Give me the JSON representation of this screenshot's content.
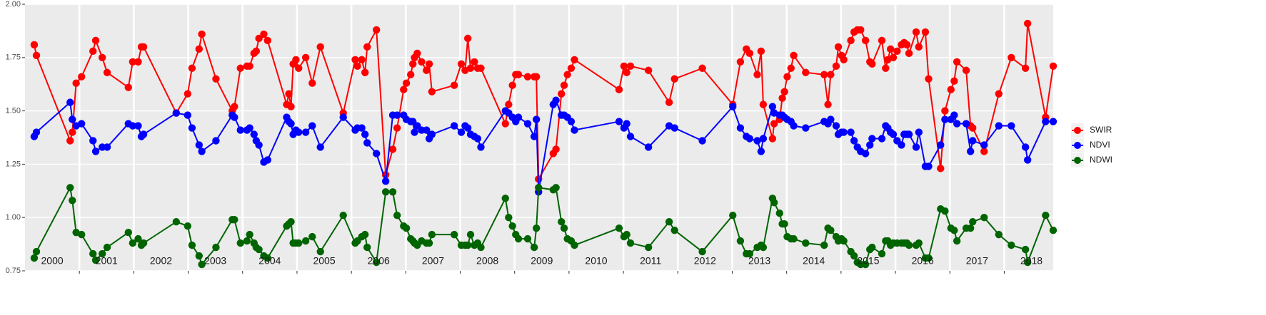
{
  "chart_data": {
    "type": "line",
    "x": [
      2000.17,
      2000.21,
      2000.83,
      2000.87,
      2000.94,
      2001.04,
      2001.25,
      2001.3,
      2001.42,
      2001.51,
      2001.9,
      2001.98,
      2002.08,
      2002.14,
      2002.18,
      2002.78,
      2002.99,
      2003.07,
      2003.2,
      2003.25,
      2003.51,
      2003.81,
      2003.85,
      2003.96,
      2004.08,
      2004.13,
      2004.21,
      2004.25,
      2004.3,
      2004.39,
      2004.46,
      2004.81,
      2004.85,
      2004.89,
      2004.93,
      2004.98,
      2005.03,
      2005.16,
      2005.28,
      2005.43,
      2005.85,
      2006.07,
      2006.11,
      2006.19,
      2006.25,
      2006.29,
      2006.46,
      2006.63,
      2006.76,
      2006.84,
      2006.96,
      2007.01,
      2007.09,
      2007.13,
      2007.16,
      2007.21,
      2007.29,
      2007.38,
      2007.43,
      2007.48,
      2007.89,
      2008.02,
      2008.09,
      2008.14,
      2008.19,
      2008.26,
      2008.32,
      2008.38,
      2008.83,
      2008.89,
      2008.96,
      2009.02,
      2009.07,
      2009.24,
      2009.36,
      2009.4,
      2009.44,
      2009.71,
      2009.76,
      2009.86,
      2009.91,
      2009.97,
      2010.04,
      2010.1,
      2010.92,
      2011.01,
      2011.06,
      2011.13,
      2011.46,
      2011.84,
      2011.94,
      2012.45,
      2013.01,
      2013.15,
      2013.26,
      2013.32,
      2013.46,
      2013.53,
      2013.57,
      2013.74,
      2013.77,
      2013.87,
      2013.92,
      2013.96,
      2014.01,
      2014.08,
      2014.13,
      2014.35,
      2014.69,
      2014.76,
      2014.81,
      2014.91,
      2014.95,
      2015.01,
      2015.05,
      2015.18,
      2015.24,
      2015.3,
      2015.36,
      2015.45,
      2015.53,
      2015.57,
      2015.75,
      2015.82,
      2015.86,
      2015.91,
      2015.96,
      2016.03,
      2016.11,
      2016.16,
      2016.21,
      2016.25,
      2016.38,
      2016.43,
      2016.55,
      2016.61,
      2016.83,
      2016.91,
      2017.02,
      2017.08,
      2017.13,
      2017.3,
      2017.38,
      2017.42,
      2017.63,
      2017.9,
      2018.13,
      2018.39,
      2018.43,
      2018.76,
      2018.9
    ],
    "series": [
      {
        "name": "SWIR",
        "color": "#ff0000",
        "values": [
          1.81,
          1.76,
          1.36,
          1.4,
          1.63,
          1.66,
          1.78,
          1.83,
          1.75,
          1.68,
          1.61,
          1.73,
          1.73,
          1.8,
          1.8,
          1.49,
          1.58,
          1.7,
          1.79,
          1.86,
          1.65,
          1.5,
          1.52,
          1.7,
          1.71,
          1.71,
          1.77,
          1.78,
          1.84,
          1.86,
          1.83,
          1.53,
          1.58,
          1.52,
          1.72,
          1.74,
          1.7,
          1.75,
          1.63,
          1.8,
          1.49,
          1.74,
          1.71,
          1.74,
          1.68,
          1.8,
          1.88,
          1.2,
          1.32,
          1.42,
          1.6,
          1.63,
          1.67,
          1.72,
          1.75,
          1.77,
          1.73,
          1.69,
          1.72,
          1.59,
          1.62,
          1.72,
          1.69,
          1.84,
          1.7,
          1.73,
          1.7,
          1.7,
          1.44,
          1.53,
          1.62,
          1.67,
          1.67,
          1.66,
          1.66,
          1.66,
          1.18,
          1.3,
          1.32,
          1.58,
          1.62,
          1.67,
          1.7,
          1.74,
          1.6,
          1.71,
          1.68,
          1.71,
          1.69,
          1.54,
          1.65,
          1.7,
          1.53,
          1.73,
          1.79,
          1.77,
          1.67,
          1.78,
          1.53,
          1.37,
          1.44,
          1.46,
          1.56,
          1.59,
          1.66,
          1.7,
          1.76,
          1.68,
          1.67,
          1.53,
          1.67,
          1.71,
          1.8,
          1.76,
          1.74,
          1.83,
          1.87,
          1.88,
          1.88,
          1.83,
          1.73,
          1.72,
          1.83,
          1.7,
          1.74,
          1.79,
          1.75,
          1.78,
          1.81,
          1.82,
          1.81,
          1.77,
          1.87,
          1.8,
          1.87,
          1.65,
          1.23,
          1.5,
          1.6,
          1.64,
          1.73,
          1.69,
          1.43,
          1.42,
          1.31,
          1.58,
          1.75,
          1.7,
          1.91,
          1.47,
          1.71
        ]
      },
      {
        "name": "NDVI",
        "color": "#0000ff",
        "values": [
          1.38,
          1.4,
          1.54,
          1.46,
          1.43,
          1.44,
          1.36,
          1.31,
          1.33,
          1.33,
          1.44,
          1.43,
          1.43,
          1.38,
          1.39,
          1.49,
          1.48,
          1.42,
          1.34,
          1.31,
          1.36,
          1.48,
          1.47,
          1.41,
          1.41,
          1.42,
          1.39,
          1.36,
          1.34,
          1.26,
          1.27,
          1.47,
          1.45,
          1.44,
          1.39,
          1.41,
          1.4,
          1.4,
          1.43,
          1.33,
          1.47,
          1.41,
          1.42,
          1.42,
          1.39,
          1.35,
          1.3,
          1.17,
          1.48,
          1.48,
          1.48,
          1.46,
          1.45,
          1.45,
          1.4,
          1.43,
          1.41,
          1.41,
          1.37,
          1.39,
          1.43,
          1.4,
          1.43,
          1.42,
          1.39,
          1.38,
          1.37,
          1.33,
          1.5,
          1.49,
          1.47,
          1.45,
          1.47,
          1.44,
          1.38,
          1.46,
          1.12,
          1.53,
          1.55,
          1.48,
          1.48,
          1.47,
          1.45,
          1.41,
          1.45,
          1.42,
          1.44,
          1.38,
          1.33,
          1.43,
          1.42,
          1.36,
          1.52,
          1.42,
          1.38,
          1.37,
          1.36,
          1.31,
          1.37,
          1.52,
          1.49,
          1.48,
          1.48,
          1.47,
          1.46,
          1.45,
          1.43,
          1.42,
          1.45,
          1.44,
          1.46,
          1.43,
          1.39,
          1.4,
          1.4,
          1.4,
          1.36,
          1.33,
          1.31,
          1.3,
          1.34,
          1.37,
          1.37,
          1.43,
          1.42,
          1.4,
          1.39,
          1.36,
          1.34,
          1.39,
          1.39,
          1.39,
          1.33,
          1.4,
          1.24,
          1.24,
          1.34,
          1.46,
          1.46,
          1.48,
          1.44,
          1.44,
          1.31,
          1.36,
          1.34,
          1.43,
          1.43,
          1.33,
          1.27,
          1.45,
          1.45
        ]
      },
      {
        "name": "NDWI",
        "color": "#006400",
        "values": [
          0.81,
          0.84,
          1.14,
          1.08,
          0.93,
          0.92,
          0.83,
          0.8,
          0.83,
          0.86,
          0.93,
          0.88,
          0.9,
          0.87,
          0.88,
          0.98,
          0.96,
          0.87,
          0.82,
          0.78,
          0.86,
          0.99,
          0.99,
          0.88,
          0.89,
          0.92,
          0.88,
          0.86,
          0.85,
          0.82,
          0.81,
          0.96,
          0.97,
          0.98,
          0.88,
          0.88,
          0.88,
          0.89,
          0.91,
          0.84,
          1.01,
          0.88,
          0.89,
          0.91,
          0.92,
          0.86,
          0.79,
          1.12,
          1.12,
          1.01,
          0.96,
          0.95,
          0.9,
          0.89,
          0.88,
          0.87,
          0.89,
          0.88,
          0.88,
          0.92,
          0.92,
          0.87,
          0.87,
          0.87,
          0.92,
          0.87,
          0.88,
          0.86,
          1.09,
          1.0,
          0.96,
          0.92,
          0.9,
          0.9,
          0.86,
          0.95,
          1.14,
          1.13,
          1.14,
          0.98,
          0.95,
          0.9,
          0.89,
          0.87,
          0.95,
          0.91,
          0.92,
          0.88,
          0.86,
          0.98,
          0.94,
          0.84,
          1.01,
          0.89,
          0.83,
          0.83,
          0.86,
          0.87,
          0.86,
          1.09,
          1.07,
          1.02,
          0.97,
          0.97,
          0.91,
          0.9,
          0.9,
          0.88,
          0.87,
          0.95,
          0.94,
          0.91,
          0.89,
          0.9,
          0.89,
          0.84,
          0.82,
          0.79,
          0.78,
          0.78,
          0.85,
          0.86,
          0.83,
          0.89,
          0.89,
          0.87,
          0.88,
          0.88,
          0.88,
          0.88,
          0.88,
          0.87,
          0.87,
          0.88,
          0.81,
          0.81,
          1.04,
          1.03,
          0.95,
          0.94,
          0.89,
          0.95,
          0.95,
          0.98,
          1.0,
          0.92,
          0.87,
          0.85,
          0.79,
          1.01,
          0.94
        ]
      }
    ],
    "xlim": [
      2000,
      2018.9
    ],
    "xticks": [
      {
        "value": 2000.5,
        "label": "2000"
      },
      {
        "value": 2001.5,
        "label": "2001"
      },
      {
        "value": 2002.5,
        "label": "2002"
      },
      {
        "value": 2003.5,
        "label": "2003"
      },
      {
        "value": 2004.5,
        "label": "2004"
      },
      {
        "value": 2005.5,
        "label": "2005"
      },
      {
        "value": 2006.5,
        "label": "2006"
      },
      {
        "value": 2007.5,
        "label": "2007"
      },
      {
        "value": 2008.5,
        "label": "2008"
      },
      {
        "value": 2009.5,
        "label": "2009"
      },
      {
        "value": 2010.5,
        "label": "2010"
      },
      {
        "value": 2011.5,
        "label": "2011"
      },
      {
        "value": 2012.5,
        "label": "2012"
      },
      {
        "value": 2013.5,
        "label": "2013"
      },
      {
        "value": 2014.5,
        "label": "2014"
      },
      {
        "value": 2015.5,
        "label": "2015"
      },
      {
        "value": 2016.5,
        "label": "2016"
      },
      {
        "value": 2017.5,
        "label": "2017"
      },
      {
        "value": 2018.5,
        "label": "2018"
      }
    ],
    "xminor": [
      2001,
      2002,
      2003,
      2004,
      2005,
      2006,
      2007,
      2008,
      2009,
      2010,
      2011,
      2012,
      2013,
      2014,
      2015,
      2016,
      2017,
      2018
    ],
    "ylim": [
      0.75,
      2.0
    ],
    "yticks": [
      {
        "value": 0.75,
        "label": "0.75"
      },
      {
        "value": 1.0,
        "label": "1.00"
      },
      {
        "value": 1.25,
        "label": "1.25"
      },
      {
        "value": 1.5,
        "label": "1.50"
      },
      {
        "value": 1.75,
        "label": "1.75"
      },
      {
        "value": 2.0,
        "label": "2.00"
      }
    ],
    "grid": true,
    "legend": "right"
  }
}
